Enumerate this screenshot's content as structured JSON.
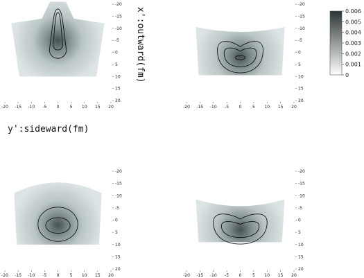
{
  "chart_data": {
    "type": "heatmap",
    "xlabel": "y':sideward(fm)",
    "ylabel": "x':outward(fm)",
    "xlim": [
      -20,
      20
    ],
    "ylim": [
      -20,
      20
    ],
    "x_ticks": [
      "-20",
      "-15",
      "-10",
      "-5",
      "0",
      "5",
      "10",
      "15",
      "20"
    ],
    "y_ticks": [
      "-20",
      "-15",
      "-10",
      "-5",
      "0",
      "5",
      "10",
      "15",
      "20"
    ],
    "colorbar": {
      "range": [
        0,
        0.006
      ],
      "ticks": [
        "0",
        "0.001",
        "0.002",
        "0.003",
        "0.004",
        "0.005",
        "0.006"
      ],
      "color_low": "#ffffff",
      "color_high": "#2b3535"
    },
    "panels": [
      {
        "id": "top-left",
        "region": {
          "ytop": [
            -17.5,
            17.5
          ],
          "xtop": [
            -12,
            -21
          ],
          "xbottom": [
            10,
            10
          ],
          "ybottom_range": [
            -14.5,
            14.5
          ]
        },
        "peak": {
          "y": 0,
          "x": -5
        },
        "contours": [
          {
            "shape": "teardrop",
            "cy": -4.5,
            "half_width": 3.2,
            "top": -18,
            "bottom": 2.5
          },
          {
            "shape": "teardrop",
            "cy": -7.5,
            "half_width": 1.8,
            "top": -16.5,
            "bottom": -1
          }
        ]
      },
      {
        "id": "top-right",
        "region": {
          "x_left": -16.5,
          "x_right": 16.5,
          "top_edge_center": -8,
          "top_edge_corner": -10.5,
          "bottom": 9.5
        },
        "peak": {
          "y": 0,
          "x": 2
        },
        "contours": [
          {
            "shape": "crescent",
            "cx": 0,
            "cy": 1.5,
            "rx": 8.5,
            "ry": 7
          },
          {
            "shape": "crescent",
            "cx": 0,
            "cy": 1.8,
            "rx": 6,
            "ry": 4.2
          },
          {
            "shape": "ellipse",
            "cx": 0,
            "cy": 2.2,
            "rx": 1.8,
            "ry": 0.9
          }
        ]
      },
      {
        "id": "bottom-left",
        "region": {
          "x_left": -16.5,
          "x_right": 16.5,
          "top_edge_center": -16.5,
          "top_edge_corner": -11,
          "bottom": 10
        },
        "peak": {
          "y": 0,
          "x": 2
        },
        "contours": [
          {
            "shape": "ellipse",
            "cx": 0,
            "cy": 1.7,
            "rx": 7.5,
            "ry": 7
          },
          {
            "shape": "ellipse",
            "cx": 0,
            "cy": 2.2,
            "rx": 4.6,
            "ry": 3.2
          }
        ]
      },
      {
        "id": "bottom-right",
        "region": {
          "x_left": -16.5,
          "x_right": 16.5,
          "top_edge_center": -5,
          "top_edge_corner": -8.5,
          "bottom": 9
        },
        "peak": {
          "y": 0,
          "x": 4
        },
        "contours": [
          {
            "shape": "crescent",
            "cx": 0,
            "cy": 3.2,
            "rx": 10,
            "ry": 6.6
          },
          {
            "shape": "crescent",
            "cx": 0,
            "cy": 3.6,
            "rx": 7,
            "ry": 3.5
          }
        ]
      }
    ]
  }
}
